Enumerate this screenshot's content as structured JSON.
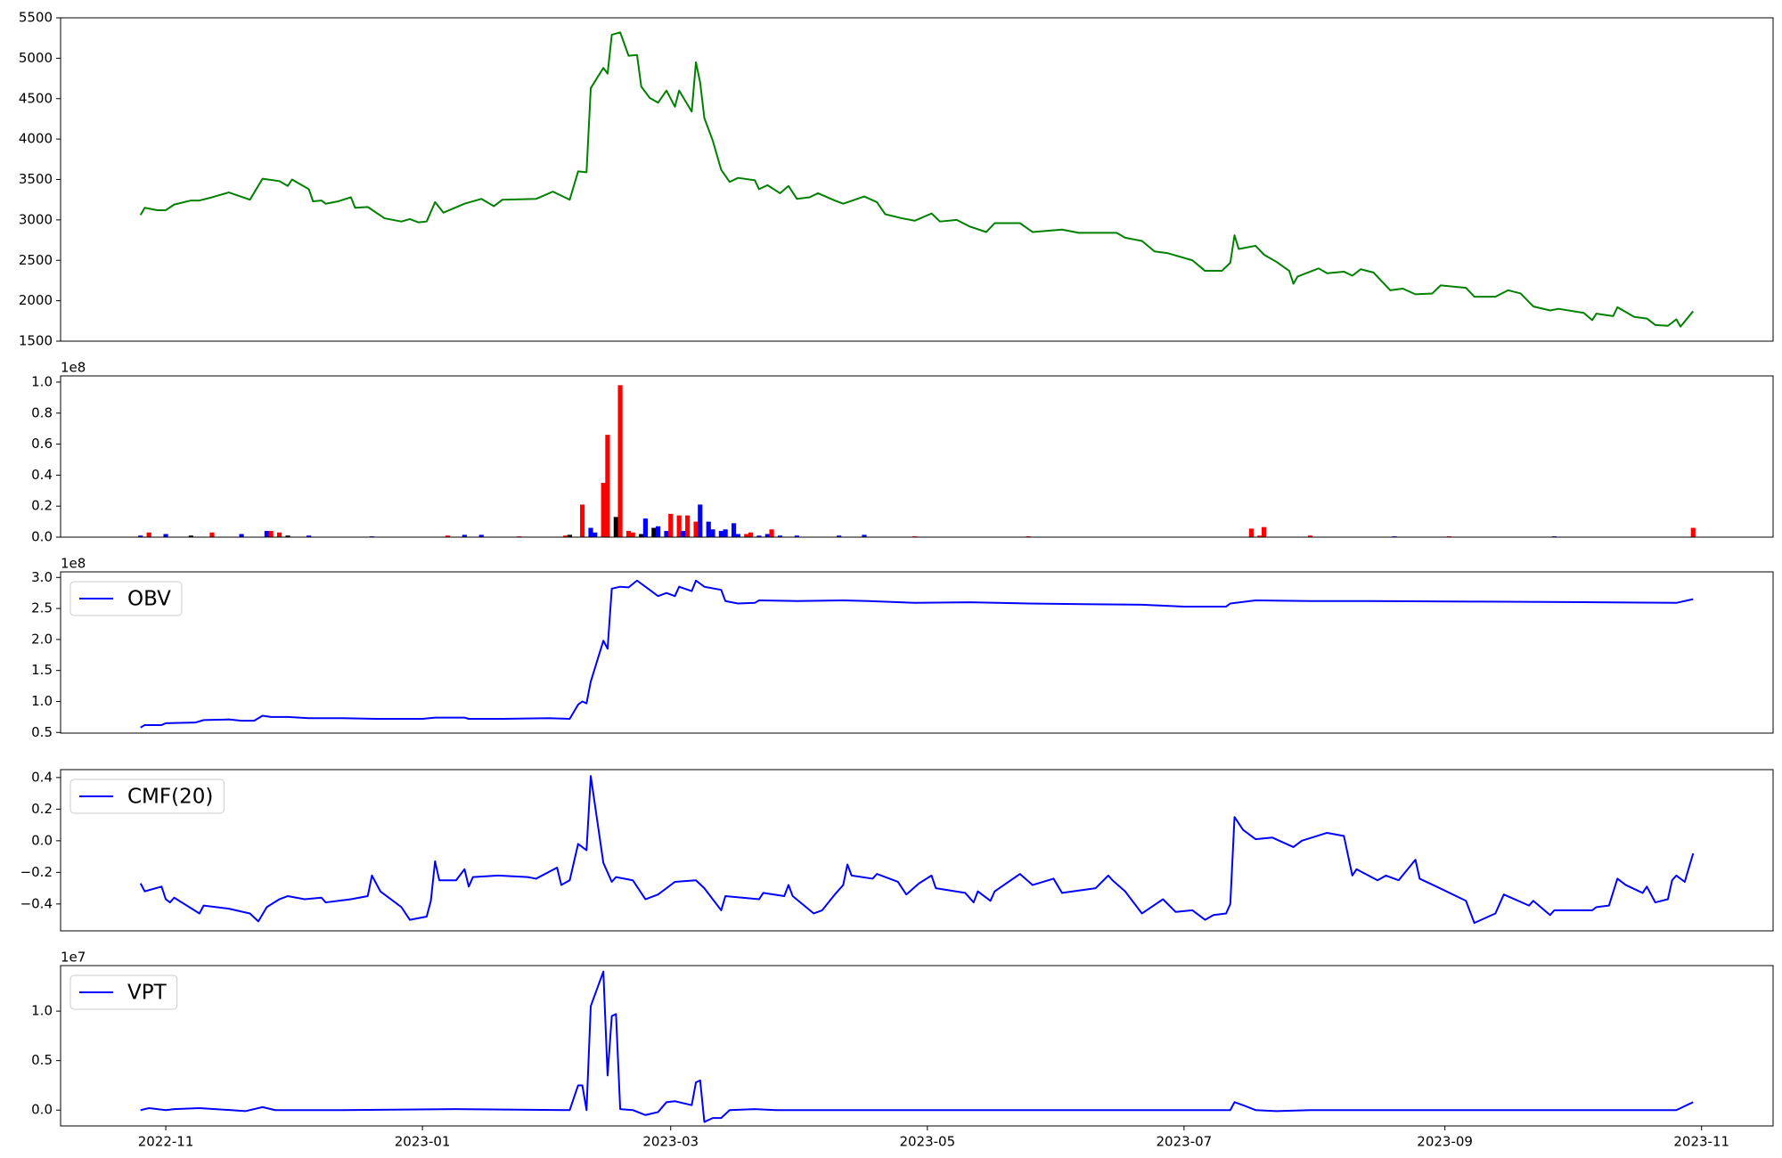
{
  "chart_data": [
    {
      "type": "line",
      "x": [
        -6,
        -5,
        -2,
        0,
        2,
        6,
        8,
        11,
        15,
        20,
        23,
        27,
        29,
        30,
        34,
        35,
        37,
        38,
        41,
        44,
        45,
        48,
        52,
        56,
        58,
        60,
        62,
        64,
        66,
        71,
        75,
        78,
        80,
        88,
        92,
        96,
        98,
        100,
        101,
        104,
        105,
        106,
        108,
        110,
        112,
        113,
        115,
        117,
        119,
        121,
        122,
        125,
        126,
        127,
        128,
        130,
        132,
        134,
        136,
        140,
        141,
        143,
        146,
        148,
        150,
        153,
        155,
        159,
        161,
        166,
        169,
        171,
        175,
        178,
        182,
        184,
        188,
        191,
        195,
        197,
        203,
        206,
        213,
        217,
        221,
        226,
        228,
        232,
        235,
        238,
        244,
        247,
        251,
        253,
        254,
        255,
        259,
        261,
        264,
        267,
        268,
        269,
        274,
        276,
        280,
        282,
        284,
        287,
        291,
        294,
        297,
        301,
        303,
        309,
        311,
        316,
        319,
        322,
        325,
        329,
        331,
        337,
        339,
        340,
        344,
        345,
        349,
        352,
        354,
        357,
        359,
        360,
        363
      ],
      "series": [
        {
          "color": "#008000",
          "values": [
            3060,
            3150,
            3120,
            3120,
            3190,
            3240,
            3240,
            3280,
            3340,
            3250,
            3510,
            3480,
            3420,
            3500,
            3380,
            3230,
            3240,
            3200,
            3230,
            3280,
            3150,
            3160,
            3020,
            2980,
            3010,
            2970,
            2980,
            3220,
            3090,
            3200,
            3260,
            3170,
            3250,
            3260,
            3350,
            3250,
            3600,
            3590,
            4630,
            4880,
            4810,
            5290,
            5320,
            5030,
            5040,
            4650,
            4510,
            4450,
            4600,
            4400,
            4600,
            4340,
            4950,
            4700,
            4260,
            3980,
            3620,
            3470,
            3520,
            3490,
            3380,
            3430,
            3330,
            3420,
            3260,
            3280,
            3330,
            3240,
            3200,
            3290,
            3220,
            3070,
            3020,
            2990,
            3080,
            2980,
            3000,
            2920,
            2850,
            2960,
            2960,
            2850,
            2880,
            2840,
            2840,
            2840,
            2780,
            2740,
            2610,
            2590,
            2500,
            2370,
            2370,
            2470,
            2810,
            2640,
            2680,
            2570,
            2480,
            2370,
            2210,
            2300,
            2400,
            2340,
            2360,
            2310,
            2390,
            2350,
            2130,
            2150,
            2080,
            2090,
            2190,
            2160,
            2050,
            2050,
            2130,
            2090,
            1930,
            1880,
            1900,
            1850,
            1760,
            1840,
            1810,
            1920,
            1800,
            1780,
            1700,
            1690,
            1770,
            1680,
            1870
          ]
        }
      ],
      "xlim": [
        -25,
        382
      ],
      "ylim": [
        1500,
        5500
      ],
      "yticks": [
        1500,
        2000,
        2500,
        3000,
        3500,
        4000,
        4500,
        5000,
        5500
      ]
    },
    {
      "type": "bar",
      "x": [
        -6,
        -4,
        0,
        6,
        11,
        18,
        24,
        25,
        27,
        29,
        34,
        49,
        67,
        71,
        75,
        84,
        95,
        96,
        99,
        101,
        102,
        104,
        105,
        107,
        108,
        110,
        111,
        113,
        114,
        116,
        117,
        119,
        120,
        122,
        123,
        124,
        126,
        127,
        129,
        130,
        132,
        133,
        135,
        136,
        138,
        139,
        141,
        143,
        144,
        146,
        150,
        160,
        166,
        178,
        205,
        258,
        260,
        261,
        272,
        292,
        305,
        330,
        363
      ],
      "values": [
        0.01,
        0.03,
        0.02,
        0.01,
        0.03,
        0.02,
        0.04,
        0.04,
        0.03,
        0.01,
        0.01,
        0.005,
        0.01,
        0.015,
        0.015,
        0.005,
        0.01,
        0.015,
        0.21,
        0.06,
        0.03,
        0.35,
        0.66,
        0.13,
        0.98,
        0.04,
        0.03,
        0.02,
        0.12,
        0.06,
        0.07,
        0.04,
        0.15,
        0.14,
        0.04,
        0.14,
        0.1,
        0.21,
        0.1,
        0.05,
        0.04,
        0.05,
        0.09,
        0.02,
        0.02,
        0.03,
        0.01,
        0.02,
        0.05,
        0.01,
        0.01,
        0.01,
        0.015,
        0.005,
        0.005,
        0.055,
        0.01,
        0.065,
        0.01,
        0.005,
        0.005,
        0.005,
        0.06
      ],
      "colors": [
        "#0000ff",
        "#ff0000",
        "#0000ff",
        "#000000",
        "#ff0000",
        "#0000ff",
        "#0000ff",
        "#ff0000",
        "#ff0000",
        "#000000",
        "#0000ff",
        "#0000ff",
        "#ff0000",
        "#0000ff",
        "#0000ff",
        "#ff0000",
        "#ff0000",
        "#000000",
        "#ff0000",
        "#0000ff",
        "#0000ff",
        "#ff0000",
        "#ff0000",
        "#000000",
        "#ff0000",
        "#ff0000",
        "#ff0000",
        "#000000",
        "#0000ff",
        "#000000",
        "#0000ff",
        "#0000ff",
        "#ff0000",
        "#ff0000",
        "#0000ff",
        "#ff0000",
        "#ff0000",
        "#0000ff",
        "#0000ff",
        "#0000ff",
        "#0000ff",
        "#0000ff",
        "#0000ff",
        "#0000ff",
        "#ff0000",
        "#ff0000",
        "#0000ff",
        "#0000ff",
        "#ff0000",
        "#0000ff",
        "#0000ff",
        "#0000ff",
        "#0000ff",
        "#ff0000",
        "#ff0000",
        "#ff0000",
        "#ff0000",
        "#ff0000",
        "#ff0000",
        "#0000ff",
        "#ff0000",
        "#0000ff",
        "#ff0000"
      ],
      "xlim": [
        -25,
        382
      ],
      "ylim": [
        0,
        1.04
      ],
      "scale_label": "1e8",
      "yticks": [
        {
          "value": 0.0,
          "label": "0.0"
        },
        0.2,
        0.4,
        0.6,
        0.8,
        {
          "value": 1.0,
          "label": "1.0"
        }
      ]
    },
    {
      "type": "line",
      "x": [
        -6,
        -5,
        -1,
        0,
        7,
        9,
        15,
        18,
        21,
        23,
        25,
        29,
        34,
        42,
        50,
        61,
        64,
        71,
        72,
        80,
        91,
        96,
        98,
        99,
        100,
        101,
        104,
        105,
        106,
        108,
        110,
        112,
        115,
        117,
        119,
        121,
        122,
        125,
        126,
        128,
        132,
        133,
        136,
        140,
        141,
        150,
        161,
        167,
        178,
        191,
        205,
        218,
        232,
        242,
        252,
        253,
        259,
        272,
        286,
        313,
        340,
        359,
        363
      ],
      "series": [
        {
          "name": "OBV",
          "color": "#0000ff",
          "values": [
            0.58,
            0.62,
            0.62,
            0.65,
            0.66,
            0.7,
            0.71,
            0.69,
            0.69,
            0.77,
            0.75,
            0.75,
            0.73,
            0.73,
            0.72,
            0.72,
            0.74,
            0.74,
            0.72,
            0.72,
            0.73,
            0.72,
            0.95,
            1.0,
            0.97,
            1.32,
            1.98,
            1.85,
            2.82,
            2.85,
            2.84,
            2.95,
            2.8,
            2.7,
            2.75,
            2.7,
            2.85,
            2.78,
            2.95,
            2.85,
            2.8,
            2.62,
            2.58,
            2.59,
            2.63,
            2.62,
            2.63,
            2.62,
            2.59,
            2.6,
            2.58,
            2.57,
            2.56,
            2.53,
            2.53,
            2.58,
            2.63,
            2.62,
            2.62,
            2.61,
            2.6,
            2.59,
            2.65
          ]
        }
      ],
      "xlim": [
        -25,
        382
      ],
      "ylim": [
        0.49,
        3.09
      ],
      "scale_label": "1e8",
      "legend": "upper left",
      "yticks": [
        0.5,
        {
          "value": 1.0,
          "label": "1.0"
        },
        1.5,
        {
          "value": 2.0,
          "label": "2.0"
        },
        2.5,
        {
          "value": 3.0,
          "label": "3.0"
        }
      ]
    },
    {
      "type": "line",
      "x": [
        -6,
        -5,
        -1,
        0,
        1,
        2,
        8,
        9,
        15,
        20,
        22,
        24,
        27,
        29,
        33,
        37,
        38,
        44,
        48,
        49,
        51,
        56,
        58,
        62,
        63,
        64,
        65,
        69,
        71,
        72,
        73,
        79,
        86,
        88,
        93,
        94,
        96,
        98,
        100,
        101,
        104,
        106,
        107,
        111,
        114,
        117,
        121,
        126,
        128,
        132,
        133,
        141,
        142,
        147,
        148,
        149,
        154,
        156,
        159,
        161,
        162,
        163,
        168,
        169,
        174,
        176,
        179,
        182,
        183,
        190,
        192,
        193,
        196,
        197,
        203,
        206,
        211,
        213,
        221,
        224,
        225,
        228,
        232,
        237,
        240,
        244,
        247,
        249,
        252,
        253,
        254,
        256,
        259,
        263,
        268,
        270,
        276,
        280,
        282,
        283,
        288,
        290,
        293,
        297,
        298,
        302,
        309,
        311,
        316,
        318,
        324,
        325,
        329,
        330,
        339,
        340,
        343,
        345,
        347,
        351,
        352,
        354,
        357,
        358,
        359,
        361,
        363
      ],
      "series": [
        {
          "name": "CMF(20)",
          "color": "#0000ff",
          "values": [
            -0.27,
            -0.32,
            -0.29,
            -0.37,
            -0.39,
            -0.36,
            -0.46,
            -0.41,
            -0.43,
            -0.46,
            -0.51,
            -0.42,
            -0.37,
            -0.35,
            -0.37,
            -0.36,
            -0.39,
            -0.37,
            -0.35,
            -0.22,
            -0.32,
            -0.42,
            -0.5,
            -0.48,
            -0.38,
            -0.13,
            -0.25,
            -0.25,
            -0.18,
            -0.29,
            -0.23,
            -0.22,
            -0.23,
            -0.24,
            -0.17,
            -0.28,
            -0.25,
            -0.02,
            -0.06,
            0.41,
            -0.14,
            -0.26,
            -0.23,
            -0.25,
            -0.37,
            -0.34,
            -0.26,
            -0.25,
            -0.3,
            -0.44,
            -0.35,
            -0.37,
            -0.33,
            -0.35,
            -0.28,
            -0.35,
            -0.46,
            -0.44,
            -0.34,
            -0.28,
            -0.15,
            -0.22,
            -0.24,
            -0.21,
            -0.26,
            -0.34,
            -0.27,
            -0.22,
            -0.3,
            -0.33,
            -0.39,
            -0.32,
            -0.38,
            -0.32,
            -0.21,
            -0.28,
            -0.24,
            -0.33,
            -0.3,
            -0.22,
            -0.25,
            -0.32,
            -0.46,
            -0.37,
            -0.45,
            -0.44,
            -0.5,
            -0.47,
            -0.46,
            -0.4,
            0.15,
            0.07,
            0.01,
            0.02,
            -0.04,
            0.0,
            0.05,
            0.03,
            -0.22,
            -0.18,
            -0.25,
            -0.22,
            -0.25,
            -0.12,
            -0.24,
            -0.29,
            -0.38,
            -0.52,
            -0.46,
            -0.34,
            -0.41,
            -0.38,
            -0.47,
            -0.44,
            -0.44,
            -0.42,
            -0.41,
            -0.24,
            -0.28,
            -0.33,
            -0.29,
            -0.39,
            -0.37,
            -0.25,
            -0.22,
            -0.26,
            -0.08
          ]
        }
      ],
      "xlim": [
        -25,
        382
      ],
      "ylim": [
        -0.57,
        0.45
      ],
      "legend": "upper left",
      "yticks": [
        {
          "value": -0.4,
          "label": "−0.4"
        },
        {
          "value": -0.2,
          "label": "−0.2"
        },
        {
          "value": 0.0,
          "label": "0.0"
        },
        0.2,
        0.4
      ]
    },
    {
      "type": "line",
      "x": [
        -6,
        -4,
        0,
        2,
        8,
        19,
        23,
        26,
        42,
        69,
        96,
        98,
        99,
        100,
        101,
        104,
        105,
        106,
        107,
        108,
        111,
        114,
        117,
        119,
        121,
        122,
        125,
        126,
        127,
        128,
        130,
        132,
        134,
        140,
        145,
        178,
        205,
        232,
        253,
        254,
        256,
        259,
        264,
        272,
        313,
        359,
        363
      ],
      "series": [
        {
          "name": "VPT",
          "color": "#0000ff",
          "values": [
            0.0,
            0.02,
            0.0,
            0.01,
            0.02,
            -0.01,
            0.03,
            0.0,
            0.0,
            0.01,
            0.0,
            0.25,
            0.25,
            0.0,
            1.05,
            1.4,
            0.35,
            0.95,
            0.97,
            0.01,
            0.0,
            -0.05,
            -0.02,
            0.08,
            0.09,
            0.08,
            0.05,
            0.28,
            0.3,
            -0.12,
            -0.08,
            -0.08,
            0.0,
            0.01,
            0.0,
            0.0,
            0.0,
            0.0,
            0.0,
            0.08,
            0.05,
            0.0,
            -0.01,
            0.0,
            0.0,
            0.0,
            0.08
          ]
        }
      ],
      "xlim": [
        -25,
        382
      ],
      "ylim": [
        -0.16,
        1.46
      ],
      "scale_label": "1e7",
      "legend": "upper left",
      "yticks": [
        {
          "value": 0.0,
          "label": "0.0"
        },
        0.5,
        {
          "value": 1.0,
          "label": "1.0"
        }
      ],
      "xticks": [
        {
          "value": 0,
          "label": "2022-11"
        },
        {
          "value": 61,
          "label": "2023-01"
        },
        {
          "value": 120,
          "label": "2023-03"
        },
        {
          "value": 181,
          "label": "2023-05"
        },
        {
          "value": 242,
          "label": "2023-07"
        },
        {
          "value": 304,
          "label": "2023-09"
        },
        {
          "value": 365,
          "label": "2023-11"
        }
      ]
    }
  ]
}
